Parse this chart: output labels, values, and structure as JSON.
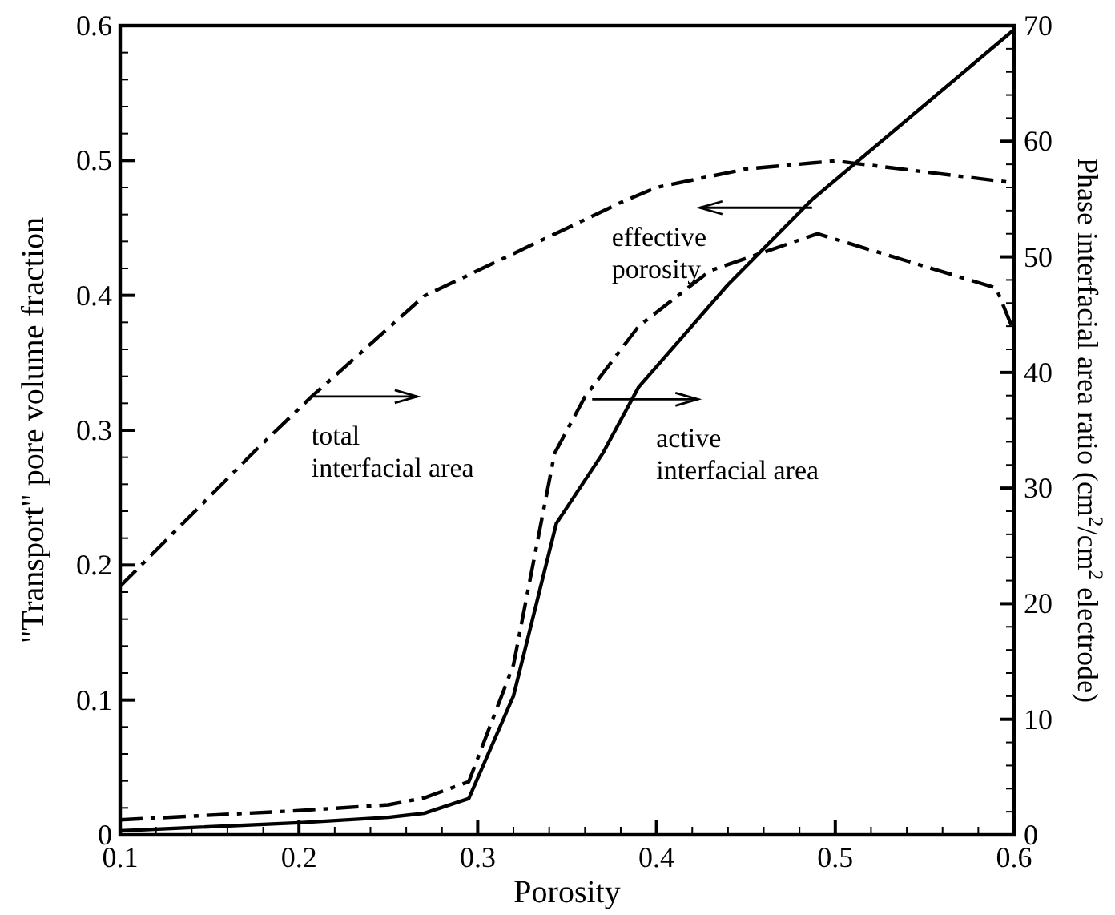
{
  "chart_data": {
    "type": "line",
    "xlabel": "Porosity",
    "ylabel": "\"Transport\" pore volume fraction",
    "y2label": "Phase interfacial  area ratio (cm$^{2}$/cm$^{2}$ electrode)",
    "series": [
      {
        "color": "#000000",
        "line_style": "solid",
        "x": [
          0.1,
          0.2,
          0.25,
          0.27,
          0.295,
          0.32,
          0.344,
          0.37,
          0.39,
          0.44,
          0.487,
          0.6
        ],
        "values": [
          0.003,
          0.009,
          0.013,
          0.016,
          0.027,
          0.103,
          0.231,
          0.283,
          0.332,
          0.408,
          0.471,
          0.597
        ]
      },
      {
        "color": "#000000",
        "line_style": "dashed",
        "axis": "y2",
        "x": [
          0.1,
          0.176,
          0.207,
          0.27,
          0.38,
          0.4,
          0.45,
          0.5,
          0.6
        ],
        "values": [
          21.5,
          33.3,
          37.9,
          46.6,
          54.7,
          56,
          57.6,
          58.3,
          56.4
        ]
      },
      {
        "color": "#000000",
        "line_style": "dashed",
        "axis": "y2",
        "x": [
          0.1,
          0.2,
          0.25,
          0.27,
          0.295,
          0.32,
          0.343,
          0.36,
          0.39,
          0.43,
          0.49,
          0.59,
          0.6
        ],
        "values": [
          1.3,
          2.1,
          2.6,
          3.2,
          4.6,
          14.7,
          33,
          37.9,
          44,
          48.8,
          52,
          47.3,
          43.5
        ]
      }
    ],
    "annotations": [
      {
        "text": "effective\nporosity",
        "x": 0.487,
        "y": 0.465
      },
      {
        "text": "total\ninterfacial area",
        "x": 0.207,
        "y": 0.325
      },
      {
        "text": "active\ninterfacial area",
        "x": 0.364,
        "y": 0.323
      }
    ],
    "xlim": [
      0.1,
      0.6
    ],
    "xticks": [
      0.1,
      0.2,
      0.3,
      0.4,
      0.5,
      0.6
    ],
    "ylim": [
      0,
      0.6
    ],
    "yticks": [
      0,
      0.1,
      0.2,
      0.3,
      0.4,
      0.5,
      0.6
    ],
    "y2lim": [
      0,
      70
    ],
    "y2ticks": [
      0,
      10,
      20,
      30,
      40,
      50,
      60,
      70
    ],
    "grid": false,
    "legend": false,
    "marker": "none"
  }
}
